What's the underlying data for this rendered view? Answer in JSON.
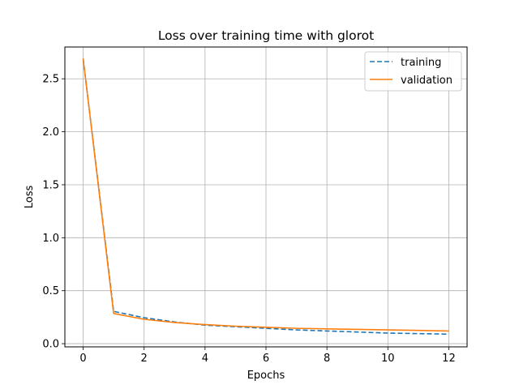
{
  "chart_data": {
    "type": "line",
    "title": "Loss over training time with glorot",
    "xlabel": "Epochs",
    "ylabel": "Loss",
    "xlim": [
      -0.6,
      12.6
    ],
    "ylim": [
      -0.03,
      2.8
    ],
    "xticks": [
      0,
      2,
      4,
      6,
      8,
      10,
      12
    ],
    "yticks": [
      0.0,
      0.5,
      1.0,
      1.5,
      2.0,
      2.5
    ],
    "grid": true,
    "legend_position": "top-right",
    "x": [
      0,
      1,
      2,
      3,
      4,
      5,
      6,
      7,
      8,
      9,
      10,
      11,
      12
    ],
    "series": [
      {
        "name": "training",
        "color": "#1f77b4",
        "style": "dashed",
        "values": [
          2.69,
          0.305,
          0.245,
          0.205,
          0.175,
          0.16,
          0.145,
          0.13,
          0.12,
          0.11,
          0.1,
          0.095,
          0.09
        ]
      },
      {
        "name": "validation",
        "color": "#ff7f0e",
        "style": "solid",
        "values": [
          2.69,
          0.285,
          0.23,
          0.2,
          0.18,
          0.165,
          0.155,
          0.145,
          0.14,
          0.135,
          0.13,
          0.125,
          0.12
        ]
      }
    ]
  }
}
